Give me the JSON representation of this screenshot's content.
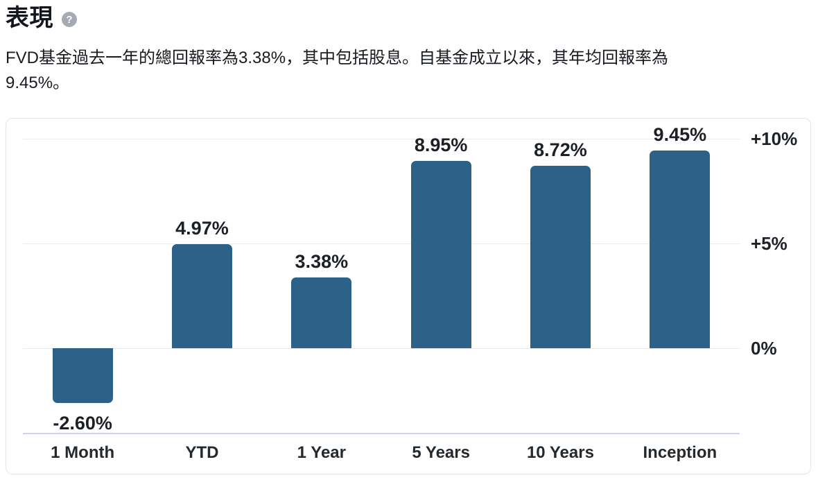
{
  "header": {
    "title": "表現",
    "help_glyph": "?"
  },
  "summary": {
    "line1": "FVD基金過去一年的總回報率為3.38%，其中包括股息。自基金成立以來，其年均回報率為",
    "line2": "9.45%。"
  },
  "chart_data": {
    "type": "bar",
    "title": "",
    "xlabel": "",
    "ylabel": "",
    "categories": [
      "1 Month",
      "YTD",
      "1 Year",
      "5 Years",
      "10 Years",
      "Inception"
    ],
    "values": [
      -2.6,
      4.97,
      3.38,
      8.95,
      8.72,
      9.45
    ],
    "value_labels": [
      "-2.60%",
      "4.97%",
      "3.38%",
      "8.95%",
      "8.72%",
      "9.45%"
    ],
    "y_axis": {
      "side": "right",
      "ticks": [
        {
          "value": 10,
          "label": "+10%"
        },
        {
          "value": 5,
          "label": "+5%"
        },
        {
          "value": 0,
          "label": "0%"
        }
      ],
      "range": [
        -4,
        11
      ]
    },
    "grid": true,
    "legend": null,
    "bar_color": "#2c6287"
  },
  "colors": {
    "bar": "#2c6287",
    "gridline": "#eaeaea",
    "axis_line": "#ccd4e6",
    "card_border": "#e4e4e6",
    "help_icon_bg": "#a6aab4"
  }
}
